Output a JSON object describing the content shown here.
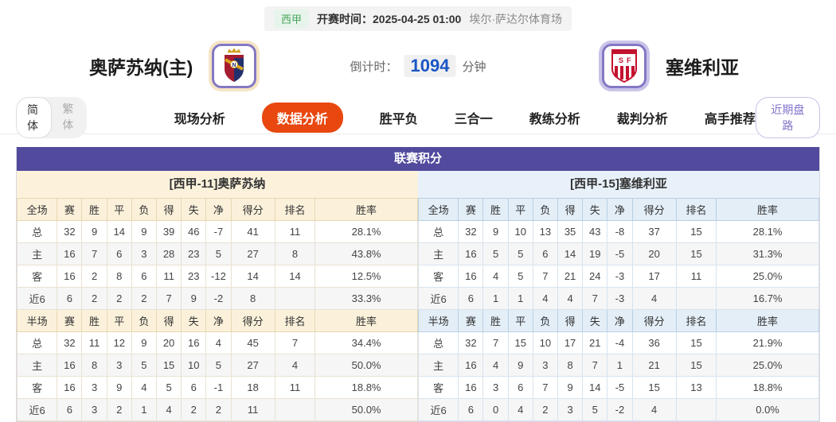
{
  "top_bar": {
    "league": "西甲",
    "kickoff": "开赛时间：2025-04-25 01:00",
    "venue": "埃尔·萨达尔体育场"
  },
  "header": {
    "home_team": "奥萨苏纳(主)",
    "away_team": "塞维利亚",
    "countdown_label": "倒计时：",
    "countdown_value": "1094",
    "countdown_unit": "分钟"
  },
  "nav": {
    "lang_toggle": [
      {
        "label": "简体",
        "active": true
      },
      {
        "label": "繁体",
        "active": false
      }
    ],
    "tabs": [
      {
        "label": "现场分析",
        "active": false
      },
      {
        "label": "数据分析",
        "active": true
      },
      {
        "label": "胜平负",
        "active": false
      },
      {
        "label": "三合一",
        "active": false
      },
      {
        "label": "教练分析",
        "active": false
      },
      {
        "label": "裁判分析",
        "active": false
      },
      {
        "label": "高手推荐",
        "active": false
      }
    ],
    "recent_button": "近期盘路"
  },
  "standings": {
    "title": "联赛积分",
    "columns_full": [
      "全场",
      "赛",
      "胜",
      "平",
      "负",
      "得",
      "失",
      "净",
      "得分",
      "排名",
      "胜率"
    ],
    "columns_half": [
      "半场",
      "赛",
      "胜",
      "平",
      "负",
      "得",
      "失",
      "净",
      "得分",
      "排名",
      "胜率"
    ],
    "left": {
      "team_title": "[西甲-11]奥萨苏纳",
      "full_rows": [
        {
          "label": "总",
          "type": "total",
          "cells": [
            "32",
            "9",
            "14",
            "9",
            "39",
            "46",
            "-7",
            "41",
            "11",
            "28.1%"
          ]
        },
        {
          "label": "主",
          "type": "home",
          "cells": [
            "16",
            "7",
            "6",
            "3",
            "28",
            "23",
            "5",
            "27",
            "8",
            "43.8%"
          ]
        },
        {
          "label": "客",
          "type": "away",
          "cells": [
            "16",
            "2",
            "8",
            "6",
            "11",
            "23",
            "-12",
            "14",
            "14",
            "12.5%"
          ]
        },
        {
          "label": "近6",
          "type": "recent",
          "cells": [
            "6",
            "2",
            "2",
            "2",
            "7",
            "9",
            "-2",
            "8",
            "",
            "33.3%"
          ]
        }
      ],
      "half_rows": [
        {
          "label": "总",
          "type": "total",
          "cells": [
            "32",
            "11",
            "12",
            "9",
            "20",
            "16",
            "4",
            "45",
            "7",
            "34.4%"
          ]
        },
        {
          "label": "主",
          "type": "home",
          "cells": [
            "16",
            "8",
            "3",
            "5",
            "15",
            "10",
            "5",
            "27",
            "4",
            "50.0%"
          ]
        },
        {
          "label": "客",
          "type": "away",
          "cells": [
            "16",
            "3",
            "9",
            "4",
            "5",
            "6",
            "-1",
            "18",
            "11",
            "18.8%"
          ]
        },
        {
          "label": "近6",
          "type": "recent",
          "cells": [
            "6",
            "3",
            "2",
            "1",
            "4",
            "2",
            "2",
            "11",
            "",
            "50.0%"
          ]
        }
      ]
    },
    "right": {
      "team_title": "[西甲-15]塞维利亚",
      "full_rows": [
        {
          "label": "总",
          "type": "total",
          "cells": [
            "32",
            "9",
            "10",
            "13",
            "35",
            "43",
            "-8",
            "37",
            "15",
            "28.1%"
          ]
        },
        {
          "label": "主",
          "type": "home",
          "cells": [
            "16",
            "5",
            "5",
            "6",
            "14",
            "19",
            "-5",
            "20",
            "15",
            "31.3%"
          ]
        },
        {
          "label": "客",
          "type": "away",
          "cells": [
            "16",
            "4",
            "5",
            "7",
            "21",
            "24",
            "-3",
            "17",
            "11",
            "25.0%"
          ]
        },
        {
          "label": "近6",
          "type": "recent",
          "cells": [
            "6",
            "1",
            "1",
            "4",
            "4",
            "7",
            "-3",
            "4",
            "",
            "16.7%"
          ]
        }
      ],
      "half_rows": [
        {
          "label": "总",
          "type": "total",
          "cells": [
            "32",
            "7",
            "15",
            "10",
            "17",
            "21",
            "-4",
            "36",
            "15",
            "21.9%"
          ]
        },
        {
          "label": "主",
          "type": "home",
          "cells": [
            "16",
            "4",
            "9",
            "3",
            "8",
            "7",
            "1",
            "21",
            "15",
            "25.0%"
          ]
        },
        {
          "label": "客",
          "type": "away",
          "cells": [
            "16",
            "3",
            "6",
            "7",
            "9",
            "14",
            "-5",
            "15",
            "13",
            "18.8%"
          ]
        },
        {
          "label": "近6",
          "type": "recent",
          "cells": [
            "6",
            "0",
            "4",
            "2",
            "3",
            "5",
            "-2",
            "4",
            "",
            "0.0%"
          ]
        }
      ]
    }
  },
  "colors": {
    "accent_orange": "#E8470F",
    "table_header_purple": "#514A9D",
    "button_purple": "#8273CC",
    "countdown_blue": "#1A56C4",
    "league_green": "#4AA65C",
    "home_row_red": "#D0342C",
    "away_row_blue": "#2A3CC0",
    "left_panel_cream": "#FCF2DC",
    "right_panel_blue": "#E8F1F9"
  }
}
